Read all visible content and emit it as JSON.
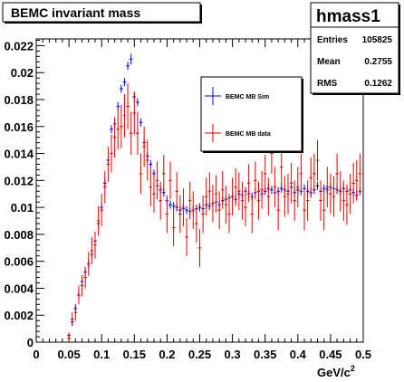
{
  "chart_data": {
    "type": "scatter",
    "title": "BEMC invariant mass",
    "xlabel": "GeV/c²",
    "ylabel": "",
    "xlim": [
      0,
      0.5
    ],
    "ylim": [
      0,
      0.0225
    ],
    "x_ticks": [
      "0",
      "0.05",
      "0.1",
      "0.15",
      "0.2",
      "0.25",
      "0.3",
      "0.35",
      "0.4",
      "0.45",
      "0.5"
    ],
    "y_ticks": [
      "0",
      "0.002",
      "0.004",
      "0.006",
      "0.008",
      "0.01",
      "0.012",
      "0.014",
      "0.016",
      "0.018",
      "0.02",
      "0.022"
    ],
    "legend_position": "upper-right",
    "stats_box": {
      "name": "hmass1",
      "rows": [
        {
          "label": "Entries",
          "value": "105825"
        },
        {
          "label": "Mean",
          "value": "0.2755"
        },
        {
          "label": "RMS",
          "value": "0.1262"
        }
      ]
    },
    "series": [
      {
        "name": "BEMC MB Sim",
        "color": "#0000ee",
        "x": [
          0.05,
          0.055,
          0.06,
          0.065,
          0.07,
          0.075,
          0.08,
          0.085,
          0.09,
          0.095,
          0.1,
          0.105,
          0.11,
          0.115,
          0.12,
          0.125,
          0.13,
          0.135,
          0.14,
          0.145,
          0.15,
          0.155,
          0.16,
          0.165,
          0.17,
          0.175,
          0.18,
          0.185,
          0.19,
          0.195,
          0.2,
          0.205,
          0.21,
          0.215,
          0.22,
          0.225,
          0.23,
          0.235,
          0.24,
          0.245,
          0.25,
          0.255,
          0.26,
          0.265,
          0.27,
          0.275,
          0.28,
          0.285,
          0.29,
          0.295,
          0.3,
          0.305,
          0.31,
          0.315,
          0.32,
          0.325,
          0.33,
          0.335,
          0.34,
          0.345,
          0.35,
          0.355,
          0.36,
          0.365,
          0.37,
          0.375,
          0.38,
          0.385,
          0.39,
          0.395,
          0.4,
          0.405,
          0.41,
          0.415,
          0.42,
          0.425,
          0.43,
          0.435,
          0.44,
          0.445,
          0.45,
          0.455,
          0.46,
          0.465,
          0.47,
          0.475,
          0.48,
          0.485,
          0.49,
          0.495
        ],
        "y": [
          0.0005,
          0.0015,
          0.0025,
          0.0035,
          0.0045,
          0.0052,
          0.0058,
          0.0065,
          0.0075,
          0.0088,
          0.01,
          0.0118,
          0.0135,
          0.0158,
          0.0162,
          0.0175,
          0.0188,
          0.0193,
          0.0205,
          0.021,
          0.0182,
          0.0178,
          0.0163,
          0.0148,
          0.0138,
          0.0132,
          0.0125,
          0.0116,
          0.0113,
          0.0111,
          0.0105,
          0.0102,
          0.0101,
          0.01,
          0.0098,
          0.0099,
          0.0098,
          0.0097,
          0.0098,
          0.0099,
          0.01,
          0.0099,
          0.0102,
          0.0101,
          0.0103,
          0.0104,
          0.0102,
          0.0105,
          0.0106,
          0.0107,
          0.0108,
          0.0106,
          0.011,
          0.0109,
          0.0112,
          0.011,
          0.0108,
          0.0111,
          0.0112,
          0.011,
          0.0112,
          0.0114,
          0.0113,
          0.0111,
          0.0112,
          0.0114,
          0.0113,
          0.0112,
          0.0115,
          0.0111,
          0.0113,
          0.0112,
          0.0114,
          0.0112,
          0.0111,
          0.0113,
          0.0116,
          0.0112,
          0.0114,
          0.0113,
          0.0115,
          0.0114,
          0.0113,
          0.0112,
          0.0114,
          0.0112,
          0.0113,
          0.0111,
          0.0109,
          0.0112
        ],
        "yerr": [
          0.0002,
          0.0003,
          0.0003,
          0.0003,
          0.0003,
          0.0003,
          0.0003,
          0.0003,
          0.0003,
          0.0003,
          0.0003,
          0.0003,
          0.0003,
          0.0003,
          0.0003,
          0.0003,
          0.0003,
          0.0003,
          0.0003,
          0.0004,
          0.0003,
          0.0003,
          0.0003,
          0.0003,
          0.0003,
          0.0003,
          0.0003,
          0.0003,
          0.0003,
          0.0003,
          0.0003,
          0.0003,
          0.0003,
          0.0003,
          0.0003,
          0.0003,
          0.0003,
          0.0003,
          0.0003,
          0.0003,
          0.0003,
          0.0003,
          0.0003,
          0.0003,
          0.0003,
          0.0003,
          0.0003,
          0.0003,
          0.0003,
          0.0003,
          0.0003,
          0.0003,
          0.0003,
          0.0003,
          0.0003,
          0.0003,
          0.0003,
          0.0003,
          0.0003,
          0.0003,
          0.0003,
          0.0003,
          0.0003,
          0.0003,
          0.0003,
          0.0003,
          0.0003,
          0.0003,
          0.0003,
          0.0003,
          0.0003,
          0.0003,
          0.0003,
          0.0003,
          0.0003,
          0.0003,
          0.0003,
          0.0003,
          0.0003,
          0.0003,
          0.0003,
          0.0003,
          0.0003,
          0.0003,
          0.0003,
          0.0003,
          0.0003,
          0.0003,
          0.0003,
          0.0003
        ]
      },
      {
        "name": "BEMC MB data",
        "color": "#dd0000",
        "x": [
          0.05,
          0.055,
          0.06,
          0.065,
          0.07,
          0.075,
          0.08,
          0.085,
          0.09,
          0.095,
          0.1,
          0.105,
          0.11,
          0.115,
          0.12,
          0.125,
          0.13,
          0.135,
          0.14,
          0.145,
          0.15,
          0.155,
          0.16,
          0.165,
          0.17,
          0.175,
          0.18,
          0.185,
          0.19,
          0.195,
          0.2,
          0.205,
          0.21,
          0.215,
          0.22,
          0.225,
          0.23,
          0.235,
          0.24,
          0.245,
          0.25,
          0.255,
          0.26,
          0.265,
          0.27,
          0.275,
          0.28,
          0.285,
          0.29,
          0.295,
          0.3,
          0.305,
          0.31,
          0.315,
          0.32,
          0.325,
          0.33,
          0.335,
          0.34,
          0.345,
          0.35,
          0.355,
          0.36,
          0.365,
          0.37,
          0.375,
          0.38,
          0.385,
          0.39,
          0.395,
          0.4,
          0.405,
          0.41,
          0.415,
          0.42,
          0.425,
          0.43,
          0.435,
          0.44,
          0.445,
          0.45,
          0.455,
          0.46,
          0.465,
          0.47,
          0.475,
          0.48,
          0.485,
          0.49,
          0.495
        ],
        "y": [
          0.0003,
          0.0017,
          0.0022,
          0.0035,
          0.0042,
          0.0048,
          0.0058,
          0.0068,
          0.0072,
          0.009,
          0.0098,
          0.0115,
          0.0132,
          0.014,
          0.0152,
          0.0158,
          0.016,
          0.0168,
          0.0175,
          0.0155,
          0.017,
          0.0155,
          0.0125,
          0.0145,
          0.0135,
          0.0115,
          0.011,
          0.012,
          0.0105,
          0.0125,
          0.0095,
          0.012,
          0.0085,
          0.0112,
          0.0095,
          0.01,
          0.0078,
          0.0105,
          0.0098,
          0.0088,
          0.007,
          0.0095,
          0.0108,
          0.0112,
          0.0103,
          0.011,
          0.0098,
          0.0113,
          0.0102,
          0.0095,
          0.0108,
          0.0115,
          0.0112,
          0.0105,
          0.01,
          0.0118,
          0.0095,
          0.012,
          0.0105,
          0.0113,
          0.0125,
          0.0108,
          0.014,
          0.0115,
          0.0098,
          0.013,
          0.0108,
          0.011,
          0.0118,
          0.0105,
          0.0115,
          0.0125,
          0.0098,
          0.0105,
          0.0122,
          0.0125,
          0.0135,
          0.0105,
          0.0098,
          0.0115,
          0.011,
          0.0108,
          0.0125,
          0.0112,
          0.0105,
          0.0102,
          0.011,
          0.0118,
          0.012,
          0.0125
        ],
        "yerr": [
          0.0003,
          0.0005,
          0.0006,
          0.0007,
          0.0008,
          0.0008,
          0.0009,
          0.001,
          0.001,
          0.0011,
          0.0012,
          0.0012,
          0.0013,
          0.0014,
          0.0015,
          0.0015,
          0.0016,
          0.0016,
          0.0017,
          0.0016,
          0.0016,
          0.0016,
          0.0015,
          0.0015,
          0.0015,
          0.0014,
          0.0014,
          0.0014,
          0.0014,
          0.0014,
          0.0014,
          0.0014,
          0.0014,
          0.0014,
          0.0014,
          0.0014,
          0.0014,
          0.0014,
          0.0014,
          0.0014,
          0.0014,
          0.0014,
          0.0014,
          0.0014,
          0.0014,
          0.0014,
          0.0014,
          0.0014,
          0.0014,
          0.0014,
          0.0014,
          0.0014,
          0.0014,
          0.0014,
          0.0014,
          0.0014,
          0.0014,
          0.0014,
          0.0014,
          0.0014,
          0.0014,
          0.0014,
          0.0015,
          0.0015,
          0.0015,
          0.0015,
          0.0015,
          0.0015,
          0.0015,
          0.0015,
          0.0015,
          0.0015,
          0.0015,
          0.0015,
          0.0015,
          0.0015,
          0.0015,
          0.0015,
          0.0015,
          0.0015,
          0.0015,
          0.0015,
          0.0015,
          0.0015,
          0.0015,
          0.0015,
          0.0015,
          0.0015,
          0.0015,
          0.0015
        ]
      }
    ]
  }
}
